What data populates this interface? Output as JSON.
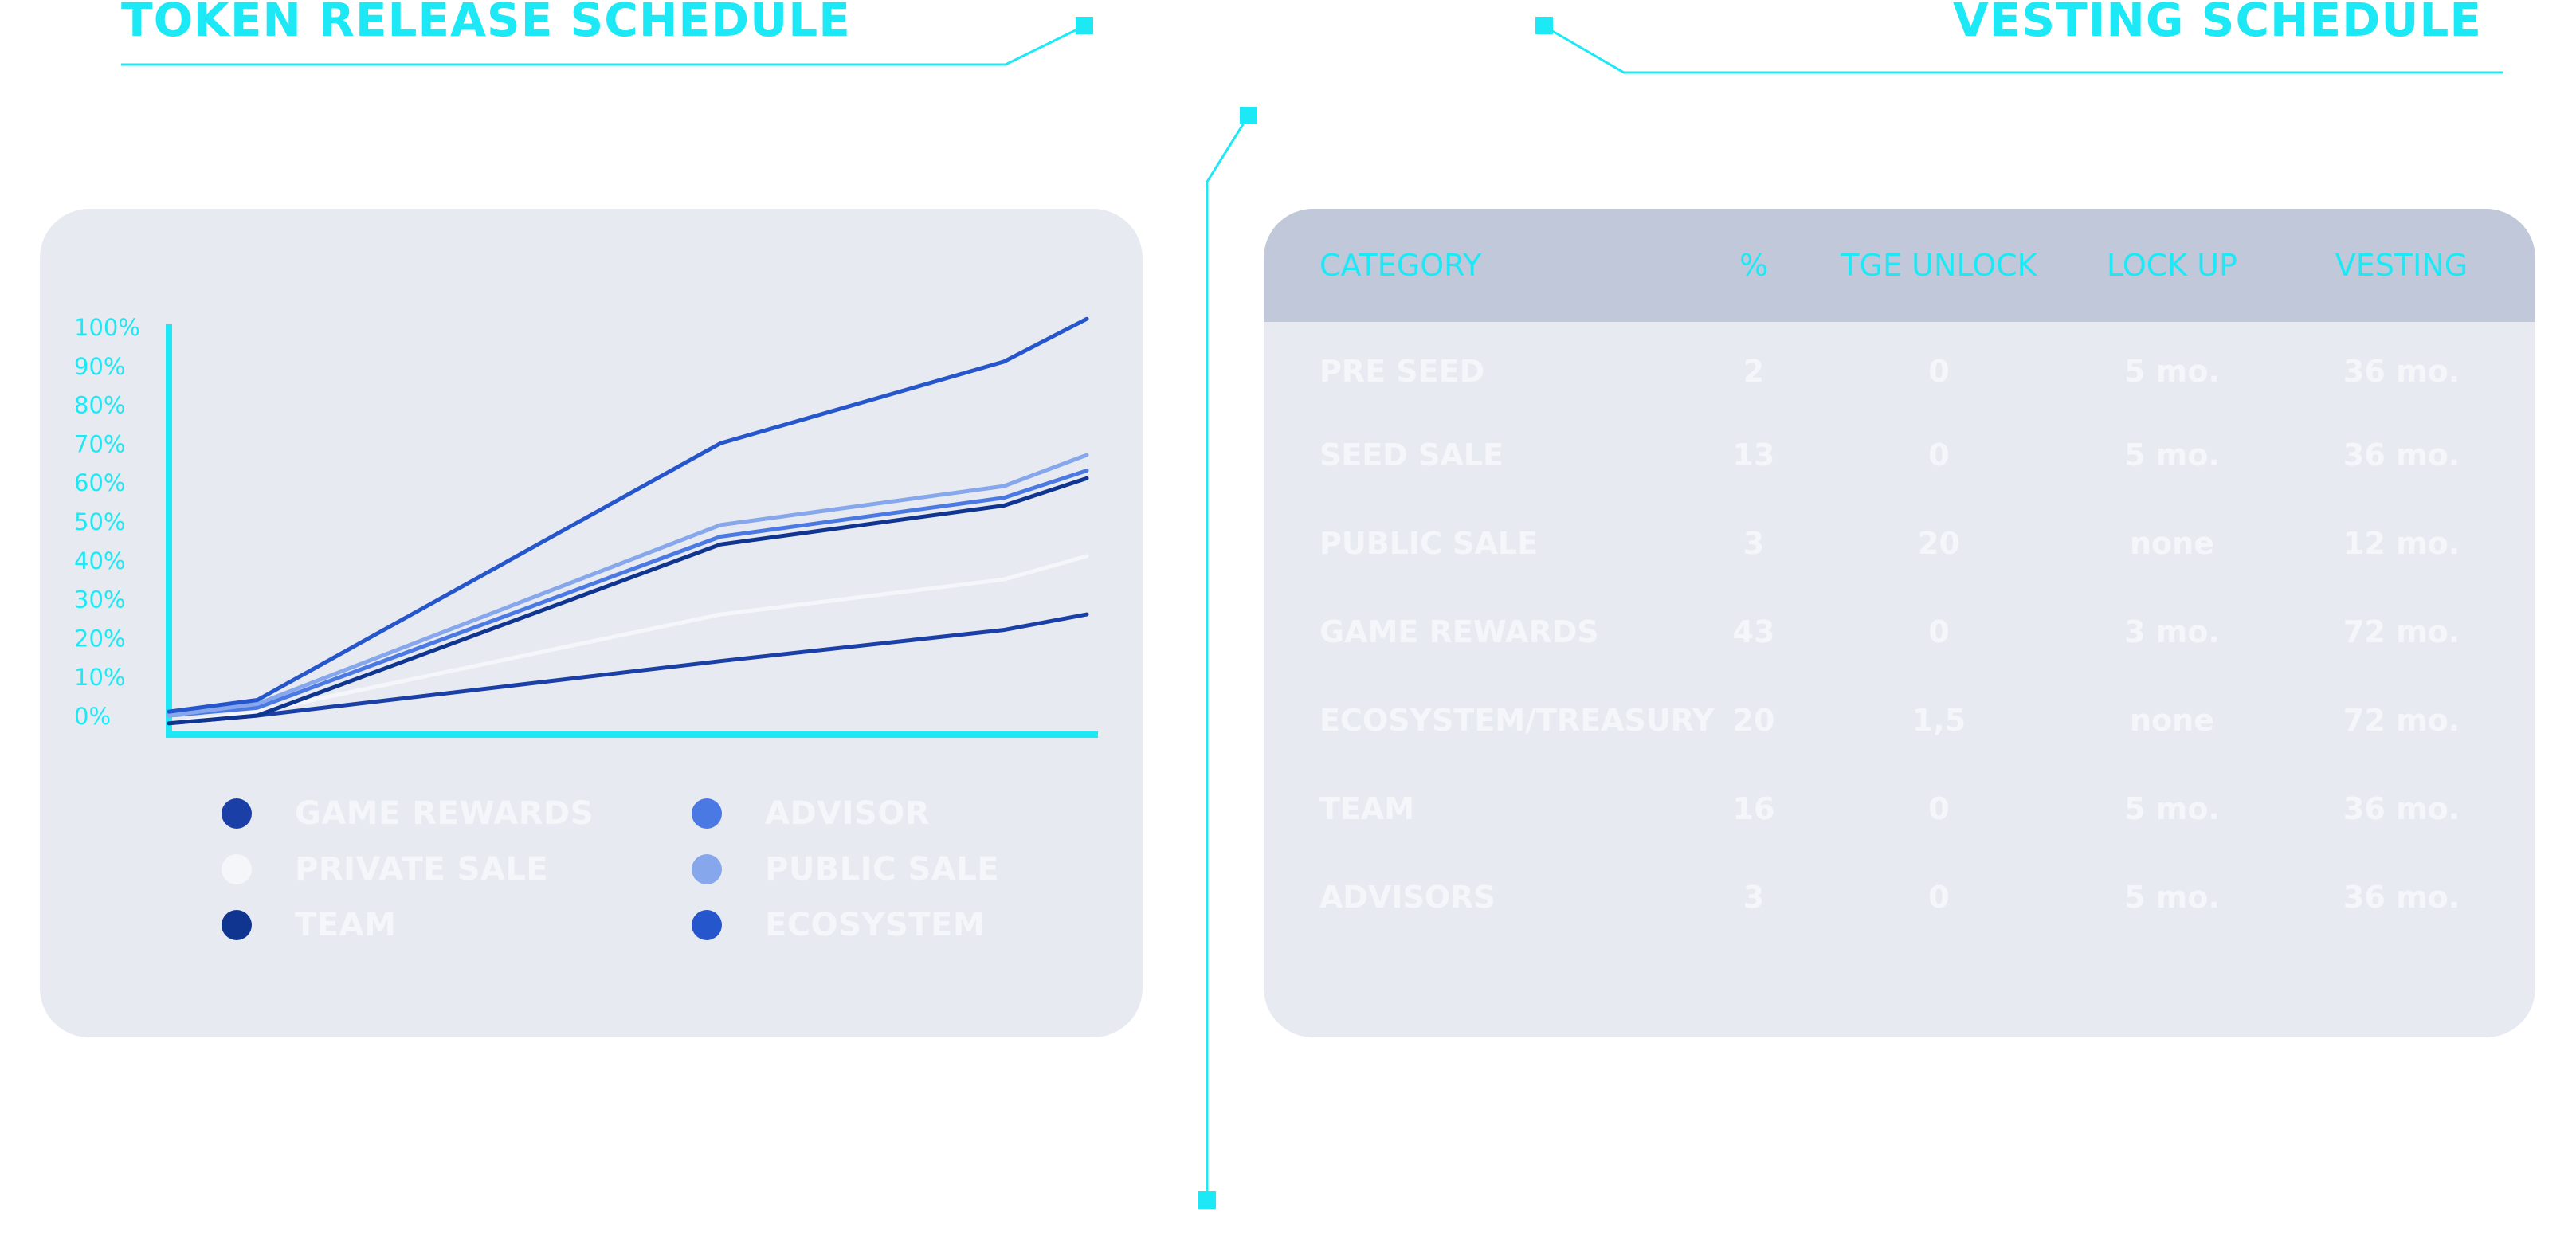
{
  "titles": {
    "left": "TOKEN RELEASE SCHEDULE",
    "right": "VESTING SCHEDULE"
  },
  "colors": {
    "accent": "#1de9f6",
    "card_bg": "#e7eaf1",
    "table_header_bg": "#c0c8da",
    "text_light": "#f4f6fa"
  },
  "chart_data": {
    "type": "line",
    "x": [
      0,
      1,
      2,
      3,
      4
    ],
    "ylim": [
      0,
      100
    ],
    "yticks": [
      "0%",
      "10%",
      "20%",
      "30%",
      "40%",
      "50%",
      "60%",
      "70%",
      "80%",
      "90%",
      "100%"
    ],
    "grid": false,
    "legend_position": "bottom",
    "series": [
      {
        "name": "GAME REWARDS",
        "color": "#1a3fa6",
        "values": [
          -2,
          0,
          14,
          22,
          26
        ]
      },
      {
        "name": "PRIVATE SALE",
        "color": "#f4f6fa",
        "values": [
          -2,
          1,
          26,
          35,
          41
        ]
      },
      {
        "name": "TEAM",
        "color": "#0f3590",
        "values": [
          -2,
          0,
          44,
          54,
          61
        ]
      },
      {
        "name": "ADVISOR",
        "color": "#4b79e3",
        "values": [
          0,
          2,
          46,
          56,
          63
        ]
      },
      {
        "name": "PUBLIC SALE",
        "color": "#87a7ec",
        "values": [
          0,
          3,
          49,
          59,
          67
        ]
      },
      {
        "name": "ECOSYSTEM",
        "color": "#2656cc",
        "values": [
          1,
          4,
          70,
          91,
          102
        ]
      }
    ],
    "legend_order": [
      "GAME REWARDS",
      "ADVISOR",
      "PRIVATE SALE",
      "PUBLIC SALE",
      "TEAM",
      "ECOSYSTEM"
    ]
  },
  "vesting_table": {
    "headers": [
      "CATEGORY",
      "%",
      "TGE UNLOCK",
      "LOCK UP",
      "VESTING"
    ],
    "rows": [
      [
        "PRE SEED",
        "2",
        "0",
        "5 mo.",
        "36 mo."
      ],
      [
        "SEED SALE",
        "13",
        "0",
        "5 mo.",
        "36 mo."
      ],
      [
        "PUBLIC SALE",
        "3",
        "20",
        "none",
        "12  mo."
      ],
      [
        "GAME REWARDS",
        "43",
        "0",
        "3 mo.",
        "72 mo."
      ],
      [
        "ECOSYSTEM/TREASURY",
        "20",
        "1,5",
        "none",
        "72 mo."
      ],
      [
        "TEAM",
        "16",
        "0",
        "5 mo.",
        "36 mo."
      ],
      [
        "ADVISORS",
        "3",
        "0",
        "5 mo.",
        "36 mo."
      ]
    ]
  }
}
